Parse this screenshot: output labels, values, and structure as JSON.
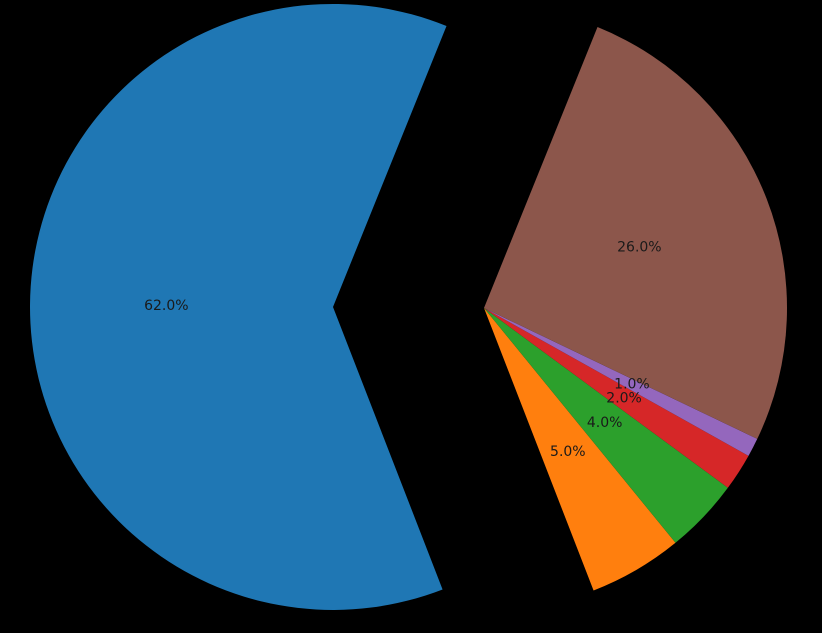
{
  "chart_data": {
    "type": "pie",
    "slices": [
      {
        "label": "62.0%",
        "value": 62.0,
        "color": "#1f77b4"
      },
      {
        "label": "5.0%",
        "value": 5.0,
        "color": "#ff7f0e"
      },
      {
        "label": "4.0%",
        "value": 4.0,
        "color": "#2ca02c"
      },
      {
        "label": "2.0%",
        "value": 2.0,
        "color": "#d62728"
      },
      {
        "label": "1.0%",
        "value": 1.0,
        "color": "#9467bd"
      },
      {
        "label": "26.0%",
        "value": 26.0,
        "color": "#8c564b"
      }
    ],
    "start_angle_deg": 68,
    "exploded_slice": "62.0%",
    "background": "#000000"
  }
}
